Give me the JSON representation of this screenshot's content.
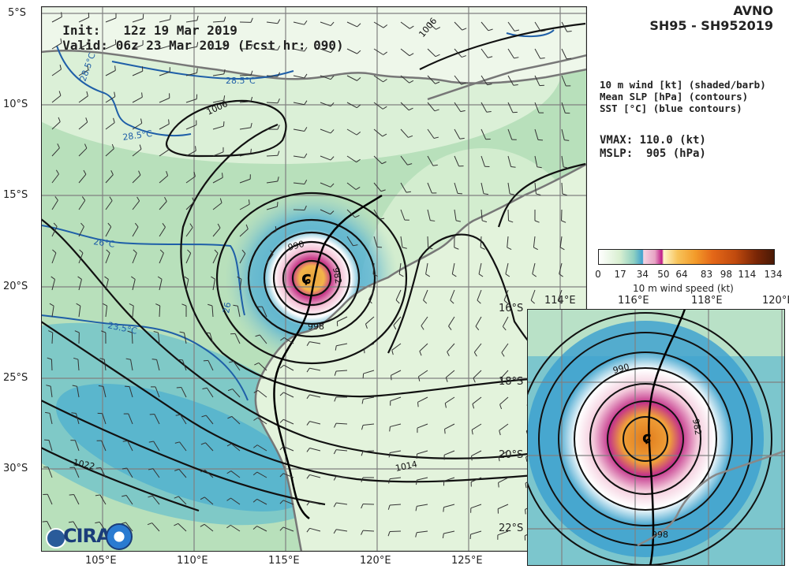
{
  "header": {
    "init_label": "Init:",
    "init_value": "12z 19 Mar 2019",
    "valid_label": "Valid:",
    "valid_value": "06z 23 Mar 2019 (Fcst hr: 090)"
  },
  "title": {
    "model": "AVNO",
    "storm": "SH95 - SH952019"
  },
  "legend": {
    "line1": "10 m wind [kt] (shaded/barb)",
    "line2": "Mean SLP [hPa] (contours)",
    "line3": "SST [°C] (blue contours)"
  },
  "stats": {
    "vmax": "VMAX: 110.0 (kt)",
    "mslp": "MSLP:  905 (hPa)"
  },
  "colorbar": {
    "ticks": [
      "0",
      "17",
      "34",
      "50",
      "64",
      "83",
      "98",
      "114",
      "134"
    ],
    "label": "10 m wind speed (kt)"
  },
  "main_map": {
    "lat_labels": [
      "5°S",
      "10°S",
      "15°S",
      "20°S",
      "25°S",
      "30°S"
    ],
    "lon_labels": [
      "105°E",
      "110°E",
      "115°E",
      "120°E",
      "125°E"
    ],
    "slp_labels": [
      "1006",
      "1006",
      "990",
      "982",
      "998",
      "1022",
      "1014"
    ],
    "sst_labels": [
      "28.5°C",
      "28.5°C",
      "28.5°C",
      "26°C",
      "23.5°C",
      "26"
    ],
    "sst_color": "#1f5fa8",
    "land_color": "#777777"
  },
  "inset_map": {
    "lat_labels": [
      "16°S",
      "18°S",
      "20°S",
      "22°S"
    ],
    "lon_labels": [
      "114°E",
      "116°E",
      "118°E",
      "120°E"
    ],
    "slp_labels": [
      "990",
      "982",
      "998"
    ]
  },
  "logo": {
    "text": "CIRA"
  }
}
